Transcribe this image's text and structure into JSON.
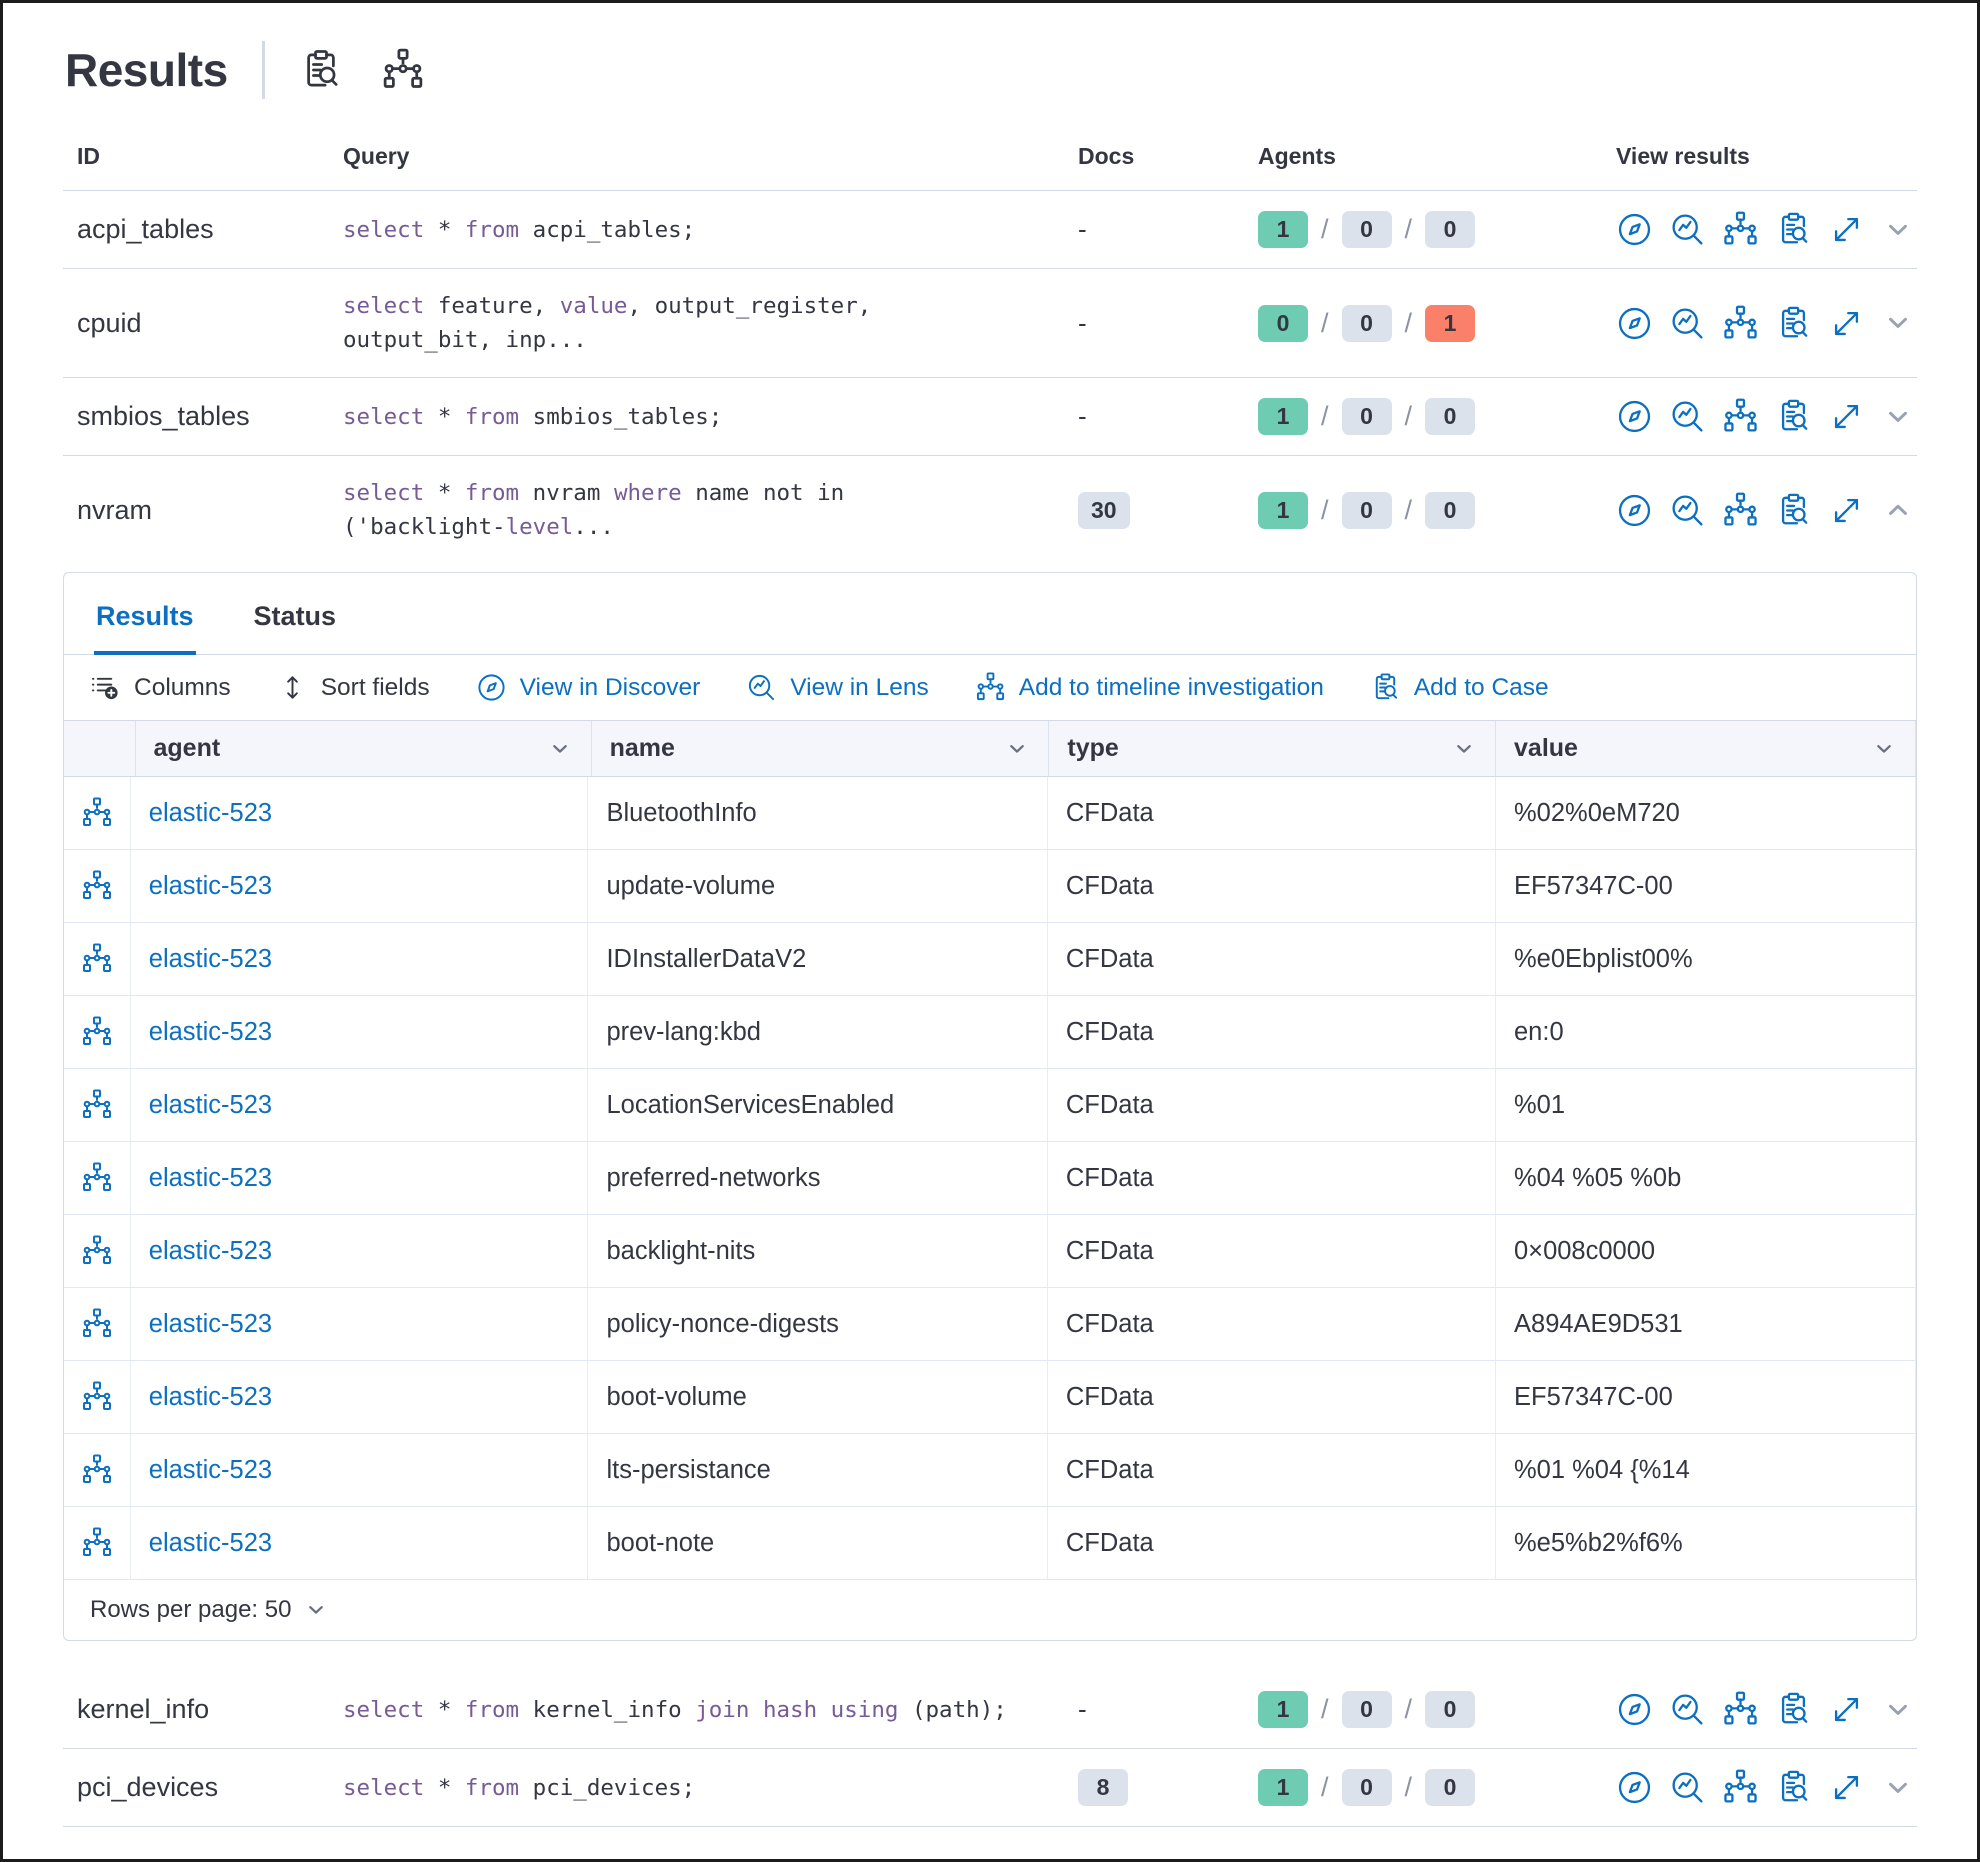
{
  "page": {
    "title": "Results"
  },
  "header": {
    "icons": [
      "inspect-icon",
      "timeline-icon"
    ]
  },
  "colors": {
    "primary": "#0C6FBF",
    "success": "#6DCCB1",
    "neutral": "#DCE2EC",
    "danger": "#FB806A",
    "keyword": "#765B96"
  },
  "queries_table": {
    "columns": [
      "ID",
      "Query",
      "Docs",
      "Agents",
      "View results"
    ],
    "agents_separator": "/",
    "action_icons": [
      "discover-icon",
      "lens-icon",
      "timeline-icon",
      "inspect-icon",
      "expand-icon"
    ],
    "rows": [
      {
        "id": "acpi_tables",
        "query": [
          [
            {
              "t": "select",
              "k": true
            },
            {
              "t": " * ",
              "k": false
            },
            {
              "t": "from",
              "k": true
            },
            {
              "t": " acpi_tables;",
              "k": false
            }
          ]
        ],
        "docs": {
          "text": "-",
          "badge": false
        },
        "agents": [
          {
            "value": "1",
            "color": "success"
          },
          {
            "value": "0",
            "color": "neutral"
          },
          {
            "value": "0",
            "color": "neutral"
          }
        ],
        "expanded": false
      },
      {
        "id": "cpuid",
        "query": [
          [
            {
              "t": "select",
              "k": true
            },
            {
              "t": " feature, ",
              "k": false
            },
            {
              "t": "value",
              "k": true
            },
            {
              "t": ", output_register,",
              "k": false
            }
          ],
          [
            {
              "t": "output_bit, inp...",
              "k": false
            }
          ]
        ],
        "docs": {
          "text": "-",
          "badge": false
        },
        "agents": [
          {
            "value": "0",
            "color": "success"
          },
          {
            "value": "0",
            "color": "neutral"
          },
          {
            "value": "1",
            "color": "danger"
          }
        ],
        "expanded": false
      },
      {
        "id": "smbios_tables",
        "query": [
          [
            {
              "t": "select",
              "k": true
            },
            {
              "t": " * ",
              "k": false
            },
            {
              "t": "from",
              "k": true
            },
            {
              "t": " smbios_tables;",
              "k": false
            }
          ]
        ],
        "docs": {
          "text": "-",
          "badge": false
        },
        "agents": [
          {
            "value": "1",
            "color": "success"
          },
          {
            "value": "0",
            "color": "neutral"
          },
          {
            "value": "0",
            "color": "neutral"
          }
        ],
        "expanded": false
      },
      {
        "id": "nvram",
        "query": [
          [
            {
              "t": "select",
              "k": true
            },
            {
              "t": " * ",
              "k": false
            },
            {
              "t": "from",
              "k": true
            },
            {
              "t": " nvram ",
              "k": false
            },
            {
              "t": "where",
              "k": true
            },
            {
              "t": " name not in",
              "k": false
            }
          ],
          [
            {
              "t": "('backlight-",
              "k": false
            },
            {
              "t": "level",
              "k": true
            },
            {
              "t": "...",
              "k": false
            }
          ]
        ],
        "docs": {
          "text": "30",
          "badge": true
        },
        "agents": [
          {
            "value": "1",
            "color": "success"
          },
          {
            "value": "0",
            "color": "neutral"
          },
          {
            "value": "0",
            "color": "neutral"
          }
        ],
        "expanded": true
      },
      {
        "id": "kernel_info",
        "query": [
          [
            {
              "t": "select",
              "k": true
            },
            {
              "t": " * ",
              "k": false
            },
            {
              "t": "from",
              "k": true
            },
            {
              "t": " kernel_info ",
              "k": false
            },
            {
              "t": "join hash using",
              "k": true
            },
            {
              "t": " (path);",
              "k": false
            }
          ]
        ],
        "docs": {
          "text": "-",
          "badge": false
        },
        "agents": [
          {
            "value": "1",
            "color": "success"
          },
          {
            "value": "0",
            "color": "neutral"
          },
          {
            "value": "0",
            "color": "neutral"
          }
        ],
        "expanded": false
      },
      {
        "id": "pci_devices",
        "query": [
          [
            {
              "t": "select",
              "k": true
            },
            {
              "t": " * ",
              "k": false
            },
            {
              "t": "from",
              "k": true
            },
            {
              "t": " pci_devices;",
              "k": false
            }
          ]
        ],
        "docs": {
          "text": "8",
          "badge": true
        },
        "agents": [
          {
            "value": "1",
            "color": "success"
          },
          {
            "value": "0",
            "color": "neutral"
          },
          {
            "value": "0",
            "color": "neutral"
          }
        ],
        "expanded": false
      }
    ]
  },
  "results_panel": {
    "tabs": [
      {
        "label": "Results",
        "active": true
      },
      {
        "label": "Status",
        "active": false
      }
    ],
    "toolbar": [
      {
        "label": "Columns",
        "icon": "columns-icon",
        "primary": false
      },
      {
        "label": "Sort fields",
        "icon": "sort-icon",
        "primary": false
      },
      {
        "label": "View in Discover",
        "icon": "discover-icon",
        "primary": true
      },
      {
        "label": "View in Lens",
        "icon": "lens-icon",
        "primary": true
      },
      {
        "label": "Add to timeline investigation",
        "icon": "timeline-icon",
        "primary": true
      },
      {
        "label": "Add to Case",
        "icon": "cases-icon",
        "primary": true
      }
    ],
    "grid": {
      "columns": [
        "agent",
        "name",
        "type",
        "value"
      ],
      "row_icon": "timeline-icon",
      "rows": [
        {
          "agent": "elastic-523",
          "name": "BluetoothInfo",
          "type": "CFData",
          "value": "%02%0eM720"
        },
        {
          "agent": "elastic-523",
          "name": "update-volume",
          "type": "CFData",
          "value": "EF57347C-00"
        },
        {
          "agent": "elastic-523",
          "name": "IDInstallerDataV2",
          "type": "CFData",
          "value": "%e0Ebplist00%"
        },
        {
          "agent": "elastic-523",
          "name": "prev-lang:kbd",
          "type": "CFData",
          "value": "en:0"
        },
        {
          "agent": "elastic-523",
          "name": "LocationServicesEnabled",
          "type": "CFData",
          "value": "%01"
        },
        {
          "agent": "elastic-523",
          "name": "preferred-networks",
          "type": "CFData",
          "value": "%04 %05 %0b"
        },
        {
          "agent": "elastic-523",
          "name": "backlight-nits",
          "type": "CFData",
          "value": "0×008c0000"
        },
        {
          "agent": "elastic-523",
          "name": "policy-nonce-digests",
          "type": "CFData",
          "value": "A894AE9D531"
        },
        {
          "agent": "elastic-523",
          "name": "boot-volume",
          "type": "CFData",
          "value": "EF57347C-00"
        },
        {
          "agent": "elastic-523",
          "name": "lts-persistance",
          "type": "CFData",
          "value": "%01 %04 {%14"
        },
        {
          "agent": "elastic-523",
          "name": "boot-note",
          "type": "CFData",
          "value": "%e5%b2%f6%"
        }
      ]
    },
    "footer": {
      "rows_per_page": "Rows per page: 50"
    }
  }
}
